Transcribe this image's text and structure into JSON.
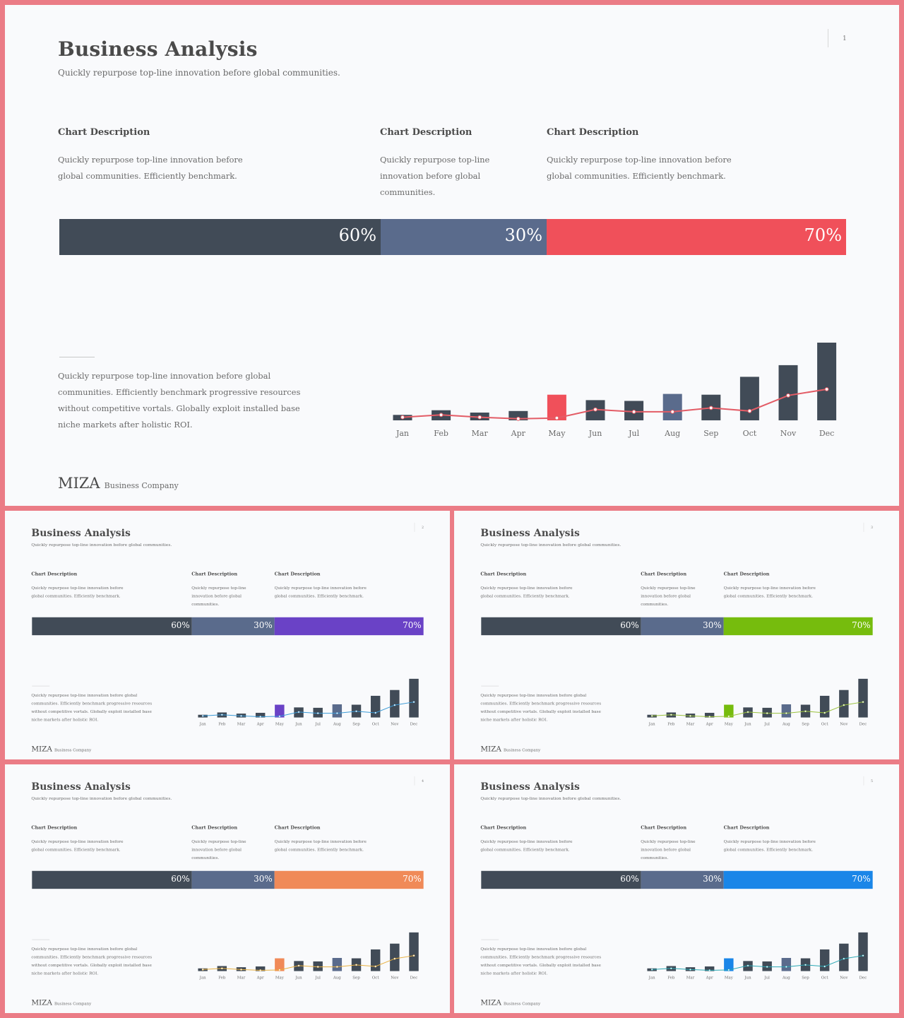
{
  "title": "Business Analysis",
  "subtitle": "Quickly repurpose top-line innovation before global communities.",
  "columns": [
    {
      "heading": "Chart Description",
      "text": "Quickly repurpose top-line innovation before global communities. Efficiently benchmark."
    },
    {
      "heading": "Chart Description",
      "text": "Quickly repurpose top-line innovation before global communities."
    },
    {
      "heading": "Chart Description",
      "text": "Quickly repurpose top-line innovation before global communities. Efficiently benchmark."
    }
  ],
  "progress": [
    {
      "label": "60%",
      "value": 60
    },
    {
      "label": "30%",
      "value": 30
    },
    {
      "label": "70%",
      "value": 70
    }
  ],
  "paragraph": "Quickly repurpose top-line innovation before global communities. Efficiently benchmark progressive resources without competitive vortals. Globally exploit installed base niche markets after holistic ROI.",
  "logo": {
    "brand": "MIZA",
    "company": "Business Company"
  },
  "colors": {
    "dark": "#414b57",
    "slate": "#5a6b8c"
  },
  "slides": [
    {
      "page": "1",
      "accent": "#f0505a",
      "line": "#e35c66",
      "dot": "#ffffff"
    },
    {
      "page": "2",
      "accent": "#6a42c6",
      "line": "#3a9ad6",
      "dot": "#ffffff"
    },
    {
      "page": "3",
      "accent": "#76bc0d",
      "line": "#9ac23c",
      "dot": "#ffffff"
    },
    {
      "page": "4",
      "accent": "#f08a58",
      "line": "#e8b040",
      "dot": "#ffffff"
    },
    {
      "page": "5",
      "accent": "#1a86e8",
      "line": "#2aa8b4",
      "dot": "#ffffff"
    }
  ],
  "chart_data": {
    "type": "bar",
    "categories": [
      "Jan",
      "Feb",
      "Mar",
      "Apr",
      "May",
      "Jun",
      "Jul",
      "Aug",
      "Sep",
      "Oct",
      "Nov",
      "Dec"
    ],
    "series": [
      {
        "type": "bar",
        "values": [
          7,
          13,
          10,
          12,
          33,
          26,
          25,
          34,
          33,
          56,
          71,
          100
        ]
      },
      {
        "type": "line",
        "values": [
          4,
          7,
          4,
          2,
          3,
          14,
          11,
          11,
          16,
          12,
          32,
          40
        ]
      }
    ],
    "highlight": {
      "May": "accent",
      "Aug": "slate"
    },
    "ylim": [
      0,
      100
    ]
  }
}
